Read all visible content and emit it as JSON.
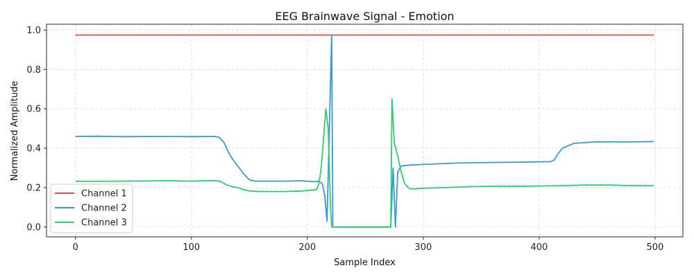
{
  "chart_data": {
    "type": "line",
    "title": "EEG Brainwave Signal - Emotion",
    "xlabel": "Sample Index",
    "ylabel": "Normalized Amplitude",
    "xlim": [
      -25,
      524
    ],
    "ylim": [
      -0.05,
      1.03
    ],
    "xticks": [
      0,
      100,
      200,
      300,
      400,
      500
    ],
    "yticks": [
      0.0,
      0.2,
      0.4,
      0.6,
      0.8,
      1.0
    ],
    "ytick_labels": [
      "0.0",
      "0.2",
      "0.4",
      "0.6",
      "0.8",
      "1.0"
    ],
    "grid": true,
    "legend_position": "lower-left",
    "series": [
      {
        "name": "Channel 1",
        "color": "#e74c3c",
        "points": [
          [
            0,
            0.975
          ],
          [
            499,
            0.975
          ]
        ]
      },
      {
        "name": "Channel 2",
        "color": "#3498db",
        "points": [
          [
            0,
            0.46
          ],
          [
            20,
            0.461
          ],
          [
            40,
            0.459
          ],
          [
            80,
            0.46
          ],
          [
            100,
            0.459
          ],
          [
            120,
            0.46
          ],
          [
            124,
            0.455
          ],
          [
            128,
            0.43
          ],
          [
            132,
            0.38
          ],
          [
            136,
            0.34
          ],
          [
            140,
            0.31
          ],
          [
            145,
            0.27
          ],
          [
            150,
            0.24
          ],
          [
            155,
            0.233
          ],
          [
            180,
            0.233
          ],
          [
            195,
            0.235
          ],
          [
            205,
            0.23
          ],
          [
            210,
            0.232
          ],
          [
            213,
            0.22
          ],
          [
            215,
            0.16
          ],
          [
            217,
            0.03
          ],
          [
            219,
            0.5
          ],
          [
            221,
            0.975
          ],
          [
            222,
            0.0
          ],
          [
            272,
            0.0
          ],
          [
            274,
            0.3
          ],
          [
            276,
            0.0
          ],
          [
            278,
            0.28
          ],
          [
            281,
            0.31
          ],
          [
            290,
            0.315
          ],
          [
            300,
            0.318
          ],
          [
            330,
            0.325
          ],
          [
            360,
            0.328
          ],
          [
            390,
            0.33
          ],
          [
            410,
            0.332
          ],
          [
            413,
            0.34
          ],
          [
            416,
            0.37
          ],
          [
            420,
            0.4
          ],
          [
            430,
            0.425
          ],
          [
            450,
            0.433
          ],
          [
            480,
            0.432
          ],
          [
            499,
            0.434
          ]
        ]
      },
      {
        "name": "Channel 3",
        "color": "#2ecc71",
        "points": [
          [
            0,
            0.232
          ],
          [
            40,
            0.233
          ],
          [
            80,
            0.235
          ],
          [
            100,
            0.233
          ],
          [
            120,
            0.236
          ],
          [
            125,
            0.232
          ],
          [
            130,
            0.215
          ],
          [
            135,
            0.205
          ],
          [
            140,
            0.2
          ],
          [
            145,
            0.19
          ],
          [
            150,
            0.183
          ],
          [
            160,
            0.18
          ],
          [
            180,
            0.18
          ],
          [
            195,
            0.183
          ],
          [
            205,
            0.188
          ],
          [
            208,
            0.19
          ],
          [
            210,
            0.22
          ],
          [
            212,
            0.3
          ],
          [
            214,
            0.45
          ],
          [
            216,
            0.6
          ],
          [
            218,
            0.5
          ],
          [
            220,
            0.1
          ],
          [
            221,
            0.0
          ],
          [
            272,
            0.0
          ],
          [
            273,
            0.65
          ],
          [
            275,
            0.43
          ],
          [
            278,
            0.36
          ],
          [
            281,
            0.28
          ],
          [
            284,
            0.22
          ],
          [
            288,
            0.195
          ],
          [
            292,
            0.193
          ],
          [
            300,
            0.197
          ],
          [
            320,
            0.2
          ],
          [
            340,
            0.205
          ],
          [
            360,
            0.207
          ],
          [
            390,
            0.207
          ],
          [
            420,
            0.21
          ],
          [
            440,
            0.213
          ],
          [
            460,
            0.213
          ],
          [
            480,
            0.21
          ],
          [
            499,
            0.21
          ]
        ]
      }
    ]
  }
}
